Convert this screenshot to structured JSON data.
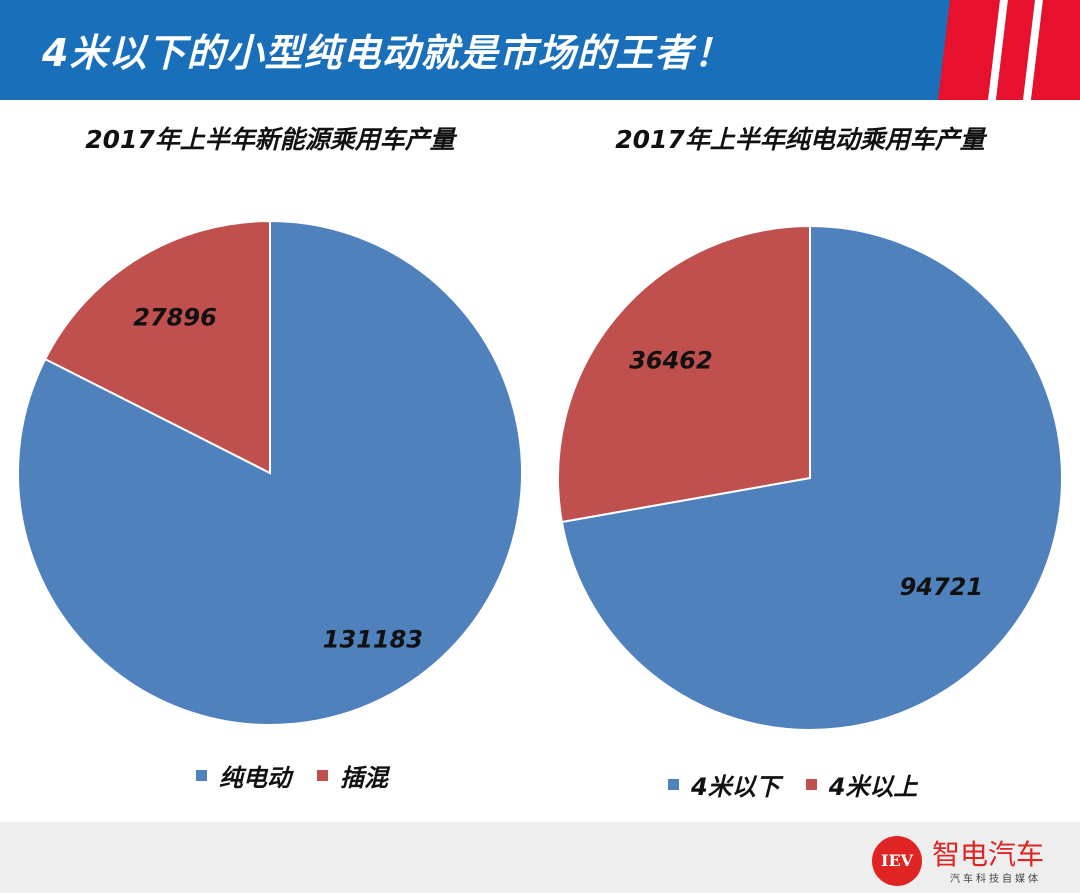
{
  "header": {
    "title": "4米以下的小型纯电动就是市场的王者！"
  },
  "colors": {
    "header_bg": "#1a6fba",
    "accent_red": "#e8112d",
    "series_blue": "#4f81bd",
    "series_red": "#c0504d"
  },
  "chart_data": [
    {
      "type": "pie",
      "title": "2017年上半年新能源乘用车产量",
      "categories": [
        "纯电动",
        "插混"
      ],
      "values": [
        131183,
        27896
      ],
      "data_labels": [
        "131183",
        "27896"
      ],
      "colors": [
        "#4f81bd",
        "#c0504d"
      ],
      "legend": "bottom"
    },
    {
      "type": "pie",
      "title": "2017年上半年纯电动乘用车产量",
      "categories": [
        "4米以下",
        "4米以上"
      ],
      "values": [
        94721,
        36462
      ],
      "data_labels": [
        "94721",
        "36462"
      ],
      "colors": [
        "#4f81bd",
        "#c0504d"
      ],
      "legend": "bottom"
    }
  ],
  "footer": {
    "logo_mark": "IEV",
    "logo_name": "智电汽车",
    "logo_sub": "汽车科技自媒体"
  }
}
